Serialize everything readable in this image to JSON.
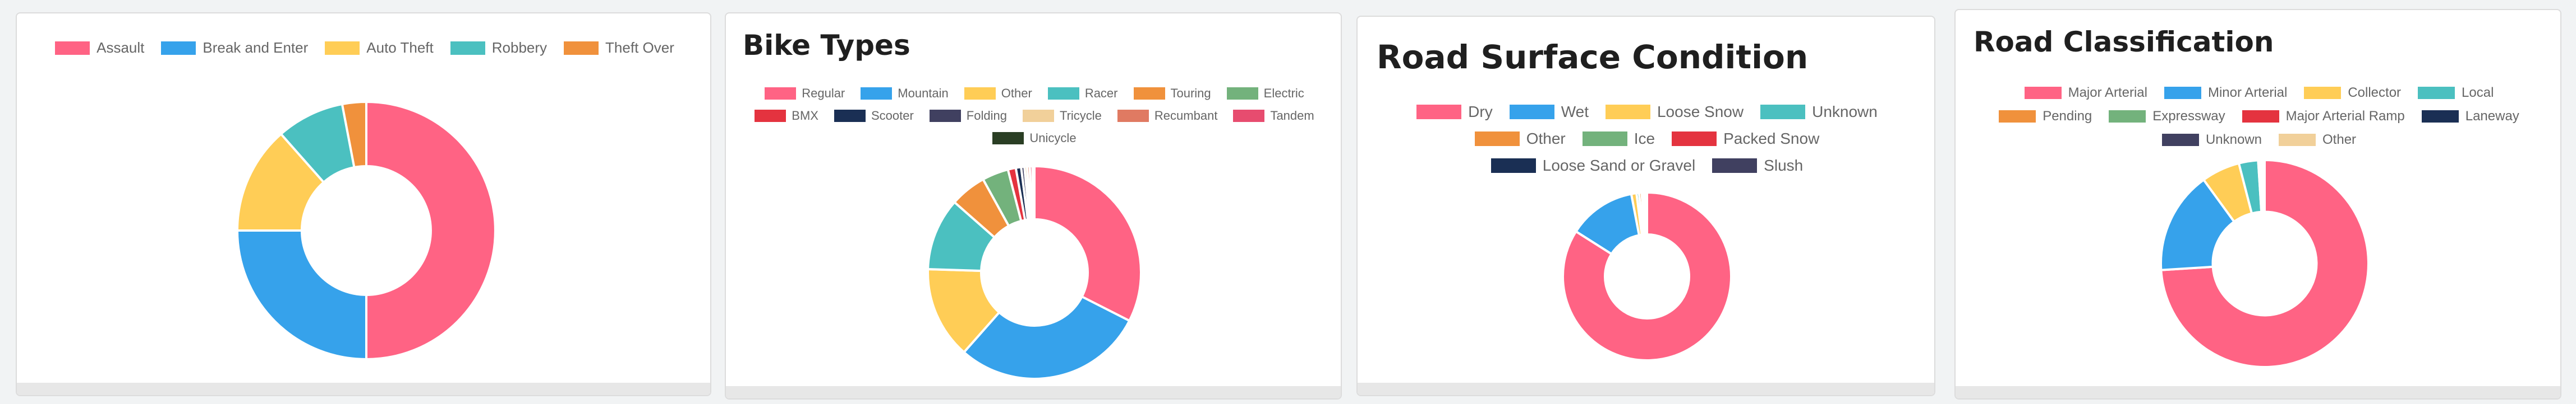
{
  "chart_data": [
    {
      "type": "pie",
      "title": "",
      "legend_position": "top",
      "labels": [
        "Assault",
        "Break and Enter",
        "Auto Theft",
        "Robbery",
        "Theft Over"
      ],
      "values": [
        50,
        25,
        13.5,
        8.5,
        3
      ],
      "colors": [
        "#ff6384",
        "#36a2eb",
        "#ffcd56",
        "#4bc0c0",
        "#f0913c"
      ]
    },
    {
      "type": "pie",
      "title": "Bike Types",
      "legend_position": "top",
      "labels": [
        "Regular",
        "Mountain",
        "Other",
        "Racer",
        "Touring",
        "Electric",
        "BMX",
        "Scooter",
        "Folding",
        "Tricycle",
        "Recumbant",
        "Tandem",
        "Unicycle"
      ],
      "values": [
        32.5,
        29,
        14,
        11,
        5.5,
        4,
        1.2,
        0.8,
        0.5,
        0.4,
        0.4,
        0.4,
        0.3
      ],
      "colors": [
        "#ff6384",
        "#36a2eb",
        "#ffcd56",
        "#4bc0c0",
        "#f0913c",
        "#73b27c",
        "#e4333f",
        "#1a2f54",
        "#404060",
        "#f1d09a",
        "#e07a62",
        "#e74c6f",
        "#2a3e24"
      ]
    },
    {
      "type": "pie",
      "title": "Road Surface Condition",
      "legend_position": "top",
      "labels": [
        "Dry",
        "Wet",
        "Loose Snow",
        "Unknown",
        "Other",
        "Ice",
        "Packed Snow",
        "Loose Sand or Gravel",
        "Slush"
      ],
      "values": [
        84,
        13,
        1,
        0.5,
        0.5,
        0.3,
        0.3,
        0.2,
        0.2
      ],
      "colors": [
        "#ff6384",
        "#36a2eb",
        "#ffcd56",
        "#4bc0c0",
        "#f0913c",
        "#73b27c",
        "#e4333f",
        "#1a2f54",
        "#404060"
      ]
    },
    {
      "type": "pie",
      "title": "Road Classification",
      "legend_position": "top",
      "labels": [
        "Major Arterial",
        "Minor Arterial",
        "Collector",
        "Local",
        "Pending",
        "Expressway",
        "Major Arterial Ramp",
        "Laneway",
        "Unknown",
        "Other"
      ],
      "values": [
        74,
        16,
        6,
        3,
        0.3,
        0.2,
        0.1,
        0.1,
        0.1,
        0.2
      ],
      "colors": [
        "#ff6384",
        "#36a2eb",
        "#ffcd56",
        "#4bc0c0",
        "#f0913c",
        "#73b27c",
        "#e4333f",
        "#1a2f54",
        "#404060",
        "#f1d09a"
      ]
    }
  ]
}
